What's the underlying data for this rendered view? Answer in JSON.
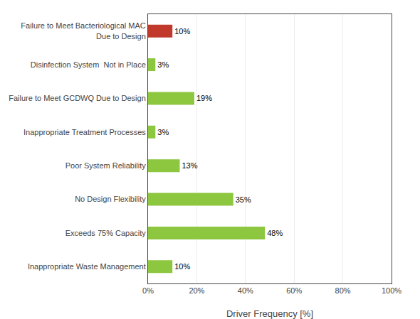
{
  "chart_data": {
    "type": "bar",
    "orientation": "horizontal",
    "categories": [
      "Inappropriate Waste Management",
      "Exceeds 75% Capacity",
      "No Design Flexibility",
      "Poor System Reliability",
      "Inappropriate Treatment Processes",
      "Failure to Meet GCDWQ Due to Design",
      "Disinfection System  Not in Place",
      "Failure to Meet Bacteriological MAC\nDue to Design"
    ],
    "values": [
      10,
      48,
      35,
      13,
      3,
      19,
      3,
      10
    ],
    "value_labels": [
      "10%",
      "48%",
      "35%",
      "13%",
      "3%",
      "19%",
      "3%",
      "10%"
    ],
    "data_labels": true,
    "colors": [
      "#8dc63f",
      "#8dc63f",
      "#8dc63f",
      "#8dc63f",
      "#8dc63f",
      "#8dc63f",
      "#8dc63f",
      "#c0392b"
    ],
    "xlabel": "Driver Frequency [%]",
    "xlim": [
      0,
      100
    ],
    "xticks": [
      {
        "value": 0,
        "label": "0%"
      },
      {
        "value": 20,
        "label": "20%"
      },
      {
        "value": 40,
        "label": "40%"
      },
      {
        "value": 60,
        "label": "60%"
      },
      {
        "value": 80,
        "label": "80%"
      },
      {
        "value": 100,
        "label": "100%"
      }
    ],
    "grid": true
  }
}
